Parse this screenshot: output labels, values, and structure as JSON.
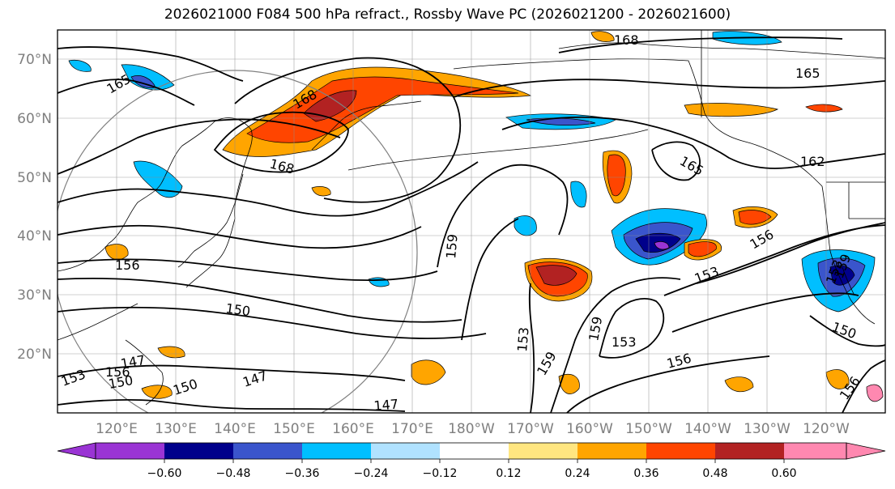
{
  "title": "2026021000 F084 500 hPa refract., Rossby Wave PC (2026021200 - 2026021600)",
  "lat_labels": [
    "70°N",
    "60°N",
    "50°N",
    "40°N",
    "30°N",
    "20°N"
  ],
  "lon_labels": [
    "120°E",
    "130°E",
    "140°E",
    "150°E",
    "160°E",
    "170°E",
    "180°W",
    "170°W",
    "160°W",
    "150°W",
    "140°W",
    "130°W",
    "120°W"
  ],
  "contour_labels": [
    "168",
    "165",
    "168",
    "168",
    "165",
    "165",
    "162",
    "159",
    "156",
    "156",
    "153",
    "153",
    "150",
    "150",
    "150",
    "147",
    "147",
    "147",
    "153",
    "159",
    "159",
    "153",
    "156",
    "150",
    "156",
    "159",
    "153",
    "156"
  ],
  "colorbar": {
    "ticks": [
      "−0.60",
      "−0.48",
      "−0.36",
      "−0.24",
      "−0.12",
      "0.12",
      "0.24",
      "0.36",
      "0.48",
      "0.60"
    ],
    "colors": [
      "#9a34d4",
      "#00008b",
      "#3a55cc",
      "#00bfff",
      "#b0e2ff",
      "#ffffff",
      "#ffe680",
      "#ffa500",
      "#ff4500",
      "#b22222",
      "#ff88b0"
    ]
  }
}
